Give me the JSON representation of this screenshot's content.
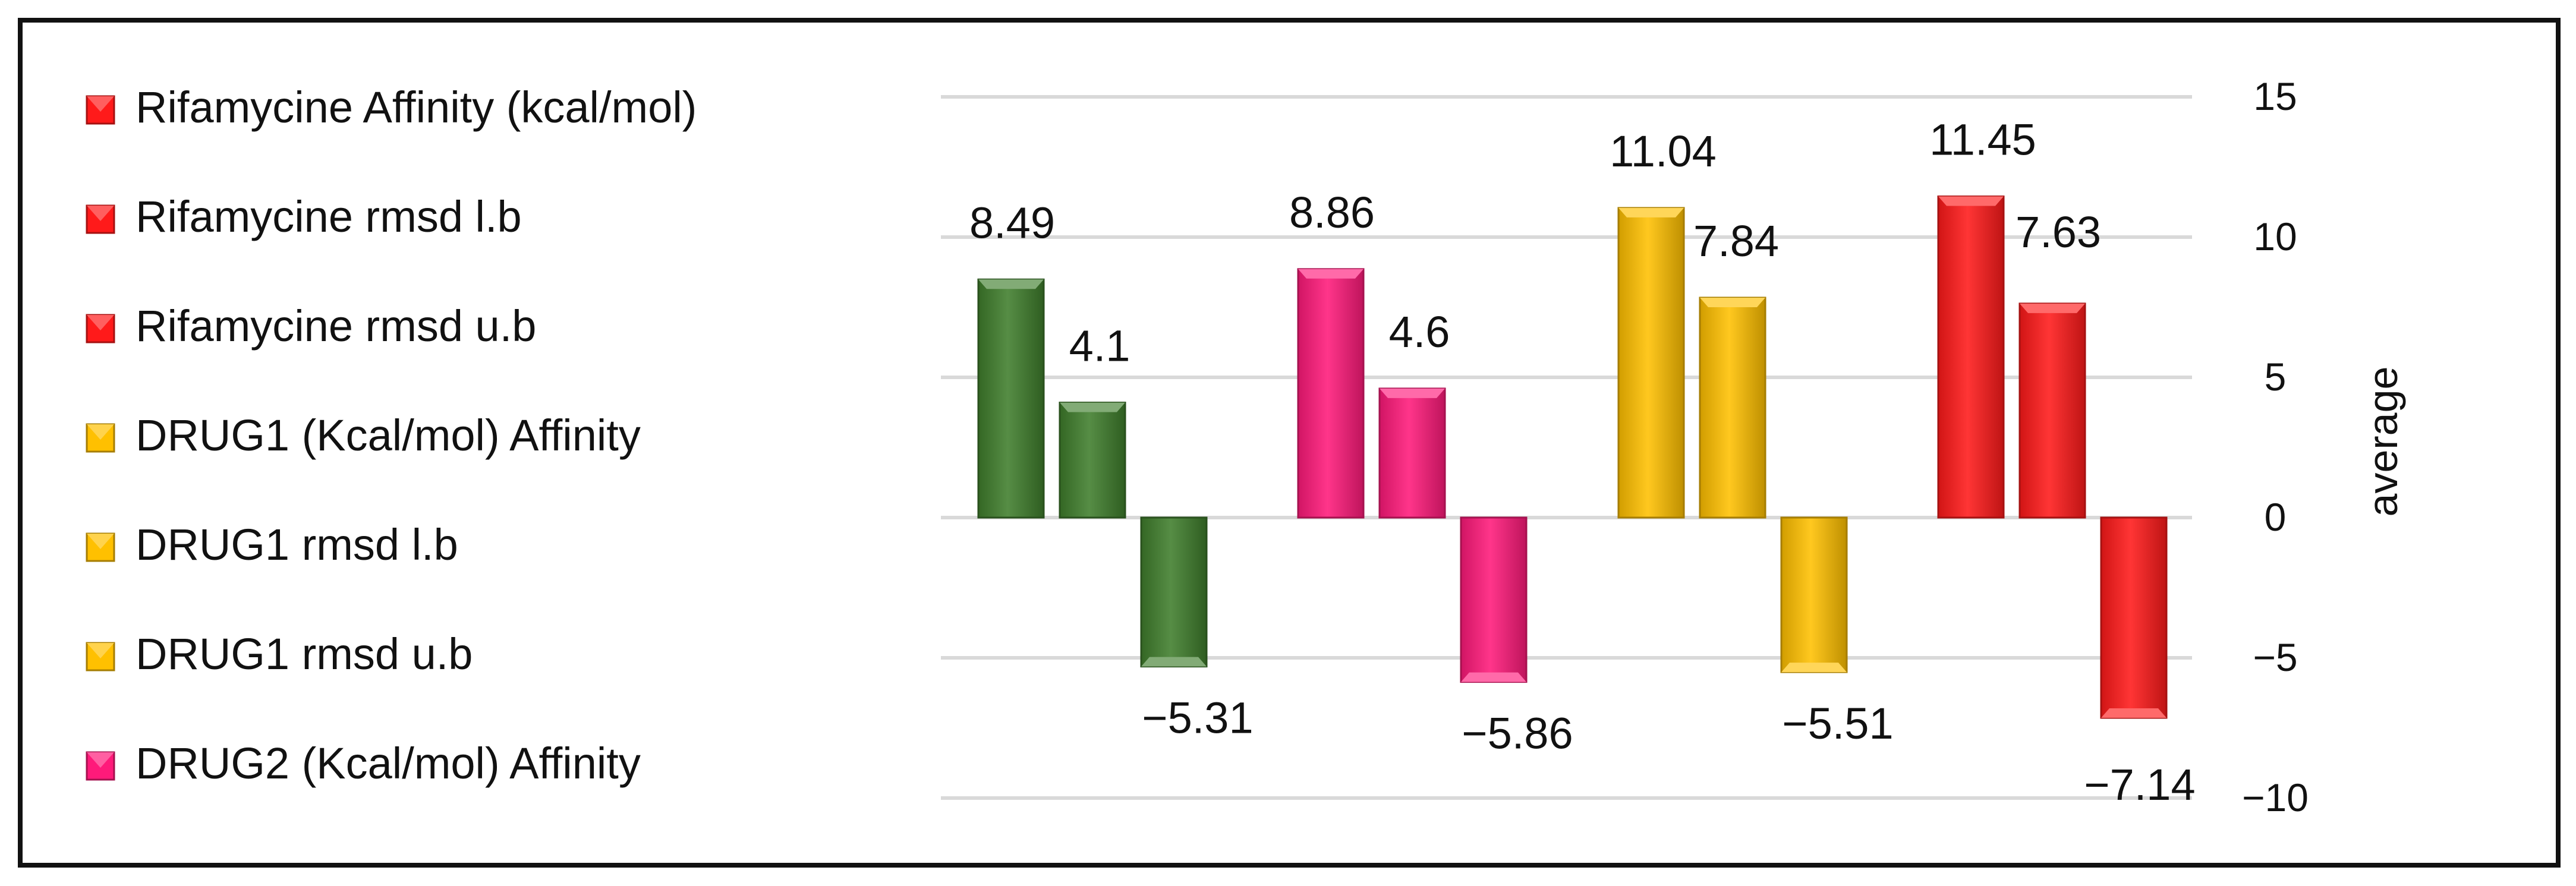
{
  "chart_data": {
    "type": "bar",
    "ylabel": "average",
    "ylim": [
      -10,
      15
    ],
    "yticks": [
      15,
      10,
      5,
      0,
      -5,
      -10
    ],
    "ytick_labels": [
      "15",
      "10",
      "5",
      "0",
      "−5",
      "−10"
    ],
    "grid": true,
    "legend_position": "left",
    "legend": [
      {
        "label": "Rifamycine Affinity (kcal/mol)",
        "color": "#ff1a1a"
      },
      {
        "label": "Rifamycine rmsd l.b",
        "color": "#ff1a1a"
      },
      {
        "label": "Rifamycine rmsd u.b",
        "color": "#ff1a1a"
      },
      {
        "label": "DRUG1 (Kcal/mol) Affinity",
        "color": "#ffc000"
      },
      {
        "label": "DRUG1 rmsd l.b",
        "color": "#ffc000"
      },
      {
        "label": "DRUG1 rmsd u.b",
        "color": "#ffc000"
      },
      {
        "label": "DRUG2 (Kcal/mol) Affinity",
        "color": "#ff1a7a"
      }
    ],
    "groups": [
      {
        "color": "#3f7d2c",
        "values": [
          8.49,
          4.1,
          -5.31
        ],
        "labels": [
          "8.49",
          "4.1",
          "−5.31"
        ]
      },
      {
        "color": "#ff1a7a",
        "values": [
          8.86,
          4.6,
          -5.86
        ],
        "labels": [
          "8.86",
          "4.6",
          "−5.86"
        ]
      },
      {
        "color": "#ffc000",
        "values": [
          11.04,
          7.84,
          -5.51
        ],
        "labels": [
          "11.04",
          "7.84",
          "−5.51"
        ]
      },
      {
        "color": "#ff1a1a",
        "values": [
          11.45,
          7.63,
          -7.14
        ],
        "labels": [
          "11.45",
          "7.63",
          "−7.14"
        ]
      }
    ]
  }
}
